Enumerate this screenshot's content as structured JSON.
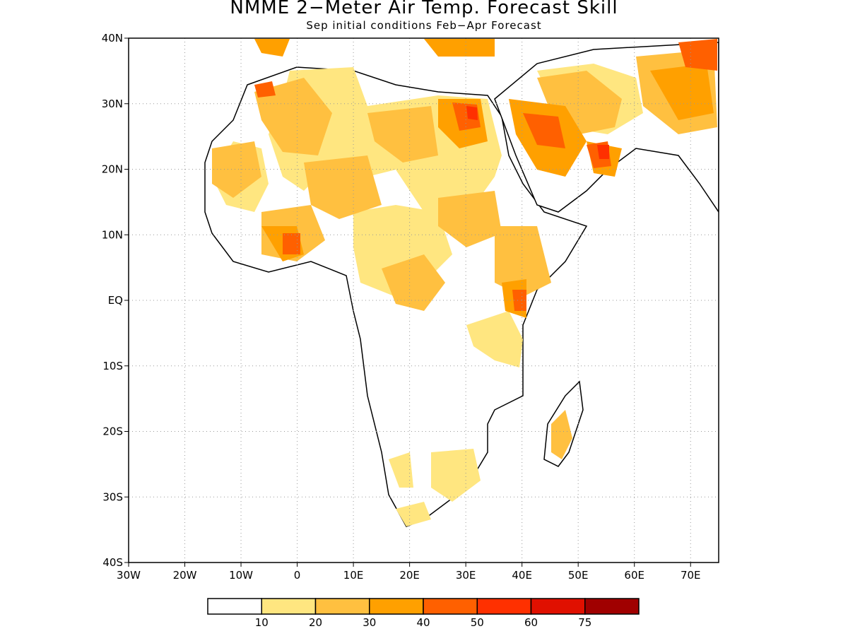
{
  "title": "NMME 2−Meter Air Temp. Forecast Skill",
  "subtitle": "Sep initial conditions  Feb−Apr Forecast",
  "map": {
    "region": "Africa and Middle East",
    "lon_range": [
      -30,
      75
    ],
    "lat_range": [
      -40,
      40
    ],
    "gridlines": "dotted",
    "x_ticks": [
      "30W",
      "20W",
      "10W",
      "0",
      "10E",
      "20E",
      "30E",
      "40E",
      "50E",
      "60E",
      "70E"
    ],
    "y_ticks": [
      "40N",
      "30N",
      "20N",
      "10N",
      "EQ",
      "10S",
      "20S",
      "30S",
      "40S"
    ]
  },
  "colorbar": {
    "colors": [
      "#ffffff",
      "#ffe680",
      "#ffc040",
      "#ffa000",
      "#ff6000",
      "#ff3000",
      "#e01000",
      "#a00000"
    ],
    "labels": [
      "10",
      "20",
      "30",
      "40",
      "50",
      "60",
      "75"
    ]
  }
}
